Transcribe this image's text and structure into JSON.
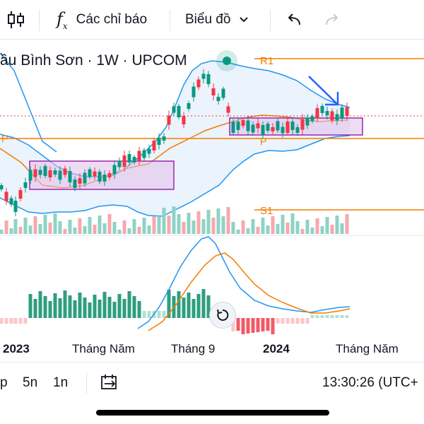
{
  "toolbar": {
    "indicators_label": "Các chỉ báo",
    "chart_type_label": "Biểu đồ"
  },
  "chart": {
    "title": "ầu Bình Sơn · 1W · UPCOM",
    "pivot_labels": {
      "r1": "R1",
      "p_left": "P",
      "p_mid": "P",
      "s1": "S1"
    },
    "colors": {
      "up": "#089981",
      "down": "#f23645",
      "bollinger": "#2196f3",
      "pivot": "#f57c00",
      "box": "#9c27b0",
      "macd": "#2196f3",
      "signal": "#f57c00",
      "arrow": "#2962ff"
    }
  },
  "time_axis": {
    "labels": [
      "2023",
      "Tháng Năm",
      "Tháng 9",
      "2024",
      "Tháng Năm"
    ]
  },
  "bottom_bar": {
    "range_1": "p",
    "range_2": "5n",
    "range_3": "1n",
    "clock": "13:30:26 (UTC+"
  },
  "icons": {
    "candles": "candlestick-icon",
    "fx": "function-icon",
    "undo": "undo-icon",
    "redo": "redo-icon",
    "goto_date": "calendar-range-icon",
    "reset": "reset-icon"
  }
}
